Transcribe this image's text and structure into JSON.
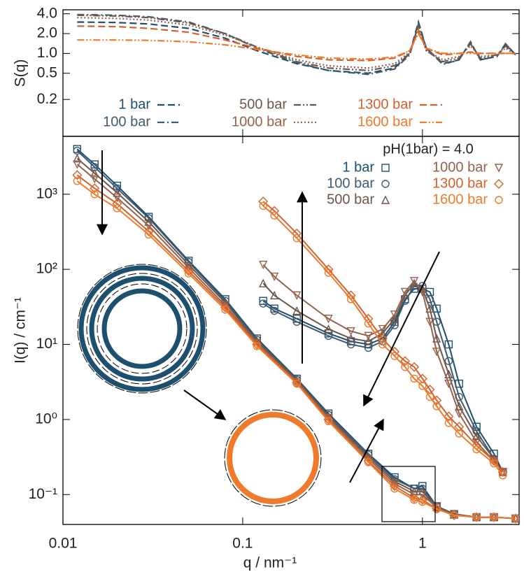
{
  "chart_data": [
    {
      "type": "line",
      "y_label": "S(q)",
      "xlim": [
        0.01,
        3.45
      ],
      "ylim": [
        0.055,
        4.6
      ],
      "log_x": true,
      "log_y": true,
      "xticks": [
        0.01,
        0.1,
        1
      ],
      "xtick_labels": false,
      "yticks": [
        0.2,
        0.5,
        {
          "value": 1,
          "label": "1.0"
        },
        {
          "value": 2,
          "label": "2.0"
        },
        {
          "value": 4,
          "label": "4.0"
        }
      ],
      "x": [
        0.012,
        0.02,
        0.03,
        0.05,
        0.08,
        0.12,
        0.2,
        0.3,
        0.5,
        0.7,
        0.85,
        0.95,
        1.05,
        1.3,
        1.6,
        1.85,
        2.1,
        2.6,
        2.9,
        3.3
      ],
      "series": [
        {
          "name": "1 bar",
          "color": "#1d4f6f",
          "linestyle": "dashed",
          "values": [
            3.0,
            2.95,
            2.8,
            2.4,
            1.7,
            1.1,
            0.7,
            0.55,
            0.5,
            0.6,
            1.0,
            3.0,
            1.2,
            0.7,
            0.8,
            1.5,
            0.8,
            0.9,
            1.4,
            0.95
          ]
        },
        {
          "name": "100 bar",
          "color": "#3f5a72",
          "linestyle": "dashdot",
          "values": [
            3.9,
            3.8,
            3.6,
            3.0,
            2.0,
            1.2,
            0.72,
            0.55,
            0.48,
            0.58,
            0.95,
            2.8,
            1.2,
            0.68,
            0.8,
            1.5,
            0.8,
            0.9,
            1.4,
            0.95
          ]
        },
        {
          "name": "500 bar",
          "color": "#6e5549",
          "linestyle": "dashdotdot",
          "values": [
            3.8,
            3.7,
            3.5,
            2.9,
            2.0,
            1.25,
            0.75,
            0.6,
            0.55,
            0.65,
            1.0,
            2.6,
            1.1,
            0.75,
            0.85,
            1.4,
            0.85,
            0.95,
            1.3,
            0.95
          ]
        },
        {
          "name": "1000 bar",
          "color": "#93624d",
          "linestyle": "dotted",
          "values": [
            3.5,
            3.4,
            3.2,
            2.7,
            1.9,
            1.25,
            0.8,
            0.65,
            0.6,
            0.7,
            1.05,
            2.4,
            1.1,
            0.8,
            0.9,
            1.3,
            0.9,
            0.95,
            1.2,
            0.95
          ]
        },
        {
          "name": "1300 bar",
          "color": "#d3622a",
          "linestyle": "dashed",
          "values": [
            2.6,
            2.55,
            2.4,
            2.1,
            1.6,
            1.2,
            0.9,
            0.8,
            0.78,
            0.85,
            1.1,
            2.2,
            1.2,
            0.95,
            1.0,
            1.05,
            1.0,
            1.0,
            1.0,
            1.0
          ]
        },
        {
          "name": "1600 bar",
          "color": "#ee7a2a",
          "linestyle": "dashdotdot",
          "values": [
            1.6,
            1.6,
            1.58,
            1.5,
            1.35,
            1.15,
            0.95,
            0.85,
            0.82,
            0.88,
            1.1,
            2.0,
            1.2,
            1.0,
            1.0,
            1.0,
            1.0,
            1.0,
            1.0,
            1.0
          ]
        }
      ]
    },
    {
      "type": "line",
      "x_label": "q / nm⁻¹",
      "y_label": "I(q) / cm⁻¹",
      "annotation": "pH(1bar) = 4.0",
      "xlim": [
        0.01,
        3.45
      ],
      "ylim": [
        0.04,
        5900
      ],
      "log_x": true,
      "log_y": true,
      "xticks": [
        0.01,
        0.1,
        1
      ],
      "yticks": [
        {
          "value": 0.1,
          "label": "10⁻¹"
        },
        {
          "value": 1,
          "label": "10⁰"
        },
        {
          "value": 10,
          "label": "10¹"
        },
        {
          "value": 100,
          "label": "10²"
        },
        {
          "value": 1000,
          "label": "10³"
        }
      ],
      "x": [
        0.012,
        0.015,
        0.02,
        0.03,
        0.05,
        0.08,
        0.12,
        0.2,
        0.3,
        0.5,
        0.7,
        0.9,
        1.0,
        1.2,
        1.5,
        2,
        2.5,
        3.3
      ],
      "inset_x": [
        0.13,
        0.15,
        0.2,
        0.3,
        0.4,
        0.5,
        0.6,
        0.7,
        0.8,
        0.9,
        1.0,
        1.1,
        1.2,
        1.4,
        1.6,
        2,
        2.5,
        2.8
      ],
      "series": [
        {
          "name": "1 bar",
          "color": "#1d4f6f",
          "marker": "square",
          "values": [
            4000,
            2500,
            1300,
            500,
            130,
            40,
            12,
            3.5,
            1.2,
            0.35,
            0.17,
            0.12,
            0.13,
            0.07,
            0.055,
            0.05,
            0.05,
            0.048
          ],
          "inset_values": [
            38,
            30,
            22,
            14,
            11,
            10,
            12,
            20,
            40,
            55,
            55,
            50,
            30,
            10,
            3,
            0.8,
            0.35,
            0.2
          ]
        },
        {
          "name": "100 bar",
          "color": "#3f5a72",
          "marker": "circle",
          "values": [
            3800,
            2300,
            1200,
            480,
            125,
            38,
            11.5,
            3.4,
            1.15,
            0.34,
            0.16,
            0.12,
            0.12,
            0.07,
            0.055,
            0.05,
            0.05,
            0.048
          ],
          "inset_values": [
            35,
            28,
            20,
            13,
            10,
            9,
            11,
            18,
            38,
            60,
            60,
            40,
            20,
            6,
            2,
            0.7,
            0.3,
            0.2
          ]
        },
        {
          "name": "500 bar",
          "color": "#6e5549",
          "marker": "triangle-up",
          "values": [
            3000,
            1900,
            1050,
            430,
            115,
            36,
            11,
            3.3,
            1.1,
            0.32,
            0.15,
            0.11,
            0.11,
            0.068,
            0.054,
            0.05,
            0.05,
            0.048
          ],
          "inset_values": [
            65,
            45,
            28,
            16,
            12,
            11,
            14,
            22,
            45,
            65,
            55,
            30,
            12,
            4,
            1.5,
            0.6,
            0.3,
            0.2
          ]
        },
        {
          "name": "1000 bar",
          "color": "#93624d",
          "marker": "triangle-down",
          "values": [
            2500,
            1600,
            900,
            380,
            105,
            33,
            10.5,
            3.2,
            1.05,
            0.3,
            0.14,
            0.1,
            0.1,
            0.067,
            0.054,
            0.05,
            0.05,
            0.048
          ],
          "inset_values": [
            115,
            80,
            45,
            22,
            15,
            13,
            16,
            25,
            50,
            70,
            50,
            20,
            8,
            3,
            1.2,
            0.5,
            0.28,
            0.2
          ]
        },
        {
          "name": "1300 bar",
          "color": "#d3622a",
          "marker": "diamond",
          "values": [
            1800,
            1200,
            750,
            320,
            95,
            31,
            10,
            3.1,
            1.0,
            0.28,
            0.13,
            0.09,
            0.085,
            0.065,
            0.053,
            0.05,
            0.05,
            0.048
          ],
          "inset_values": [
            800,
            600,
            300,
            100,
            45,
            22,
            12,
            8,
            6,
            5,
            3.5,
            2.5,
            1.8,
            1.1,
            0.8,
            0.45,
            0.28,
            0.2
          ]
        },
        {
          "name": "1600 bar",
          "color": "#ee7a2a",
          "marker": "circle",
          "values": [
            1500,
            1000,
            650,
            290,
            88,
            29,
            9.5,
            3.0,
            0.95,
            0.27,
            0.12,
            0.085,
            0.08,
            0.064,
            0.053,
            0.05,
            0.05,
            0.048
          ],
          "inset_values": [
            700,
            520,
            260,
            90,
            40,
            19,
            10,
            7,
            5,
            3.5,
            2.8,
            2,
            1.5,
            0.9,
            0.65,
            0.4,
            0.26,
            0.18
          ]
        }
      ]
    }
  ]
}
